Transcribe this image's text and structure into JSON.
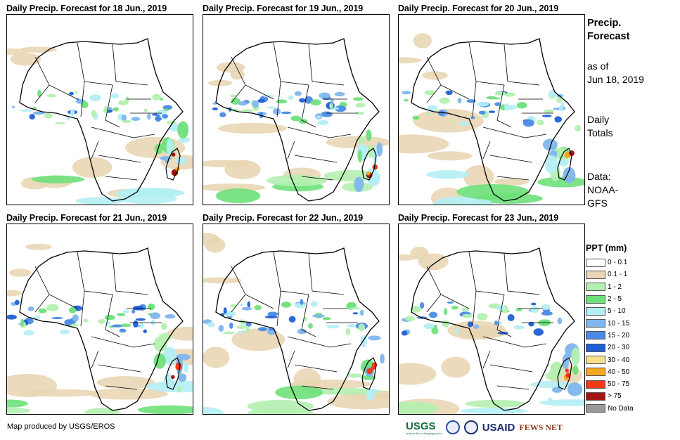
{
  "panels": [
    {
      "title": "Daily Precip. Forecast for 18 Jun., 2019"
    },
    {
      "title": "Daily Precip. Forecast for 19 Jun., 2019"
    },
    {
      "title": "Daily Precip. Forecast for 20 Jun., 2019"
    },
    {
      "title": "Daily Precip. Forecast for 21 Jun., 2019"
    },
    {
      "title": "Daily Precip. Forecast for 22 Jun., 2019"
    },
    {
      "title": "Daily Precip. Forecast for 23 Jun., 2019"
    }
  ],
  "side": {
    "title_line1": "Precip.",
    "title_line2": "Forecast",
    "asof_line1": "as of",
    "asof_line2": "Jun 18, 2019",
    "totals_line1": "Daily",
    "totals_line2": "Totals",
    "data_line1": "Data:",
    "data_line2": "NOAA-",
    "data_line3": "GFS"
  },
  "legend": {
    "title": "PPT (mm)",
    "items": [
      {
        "label": "0 - 0.1",
        "color": "#ffffff"
      },
      {
        "label": "0.1 - 1",
        "color": "#e9d6b4"
      },
      {
        "label": "1 - 2",
        "color": "#b4f0b0"
      },
      {
        "label": "2 - 5",
        "color": "#6ee07a"
      },
      {
        "label": "5 - 10",
        "color": "#b4eef4"
      },
      {
        "label": "10 - 15",
        "color": "#7fb6ee"
      },
      {
        "label": "15 - 20",
        "color": "#4a8ae6"
      },
      {
        "label": "20 - 30",
        "color": "#1f5fd6"
      },
      {
        "label": "30 - 40",
        "color": "#f7e08a"
      },
      {
        "label": "40 - 50",
        "color": "#f5a623"
      },
      {
        "label": "50 - 75",
        "color": "#ee3b18"
      },
      {
        "label": "> 75",
        "color": "#a31515"
      },
      {
        "label": "No Data",
        "color": "#999999"
      }
    ]
  },
  "footer": {
    "credit": "Map produced by USGS/EROS",
    "logo_usgs": "USGS",
    "logo_usgs_tagline": "science for a changing world",
    "logo_usaid": "USAID",
    "logo_fews": "FEWS NET"
  }
}
